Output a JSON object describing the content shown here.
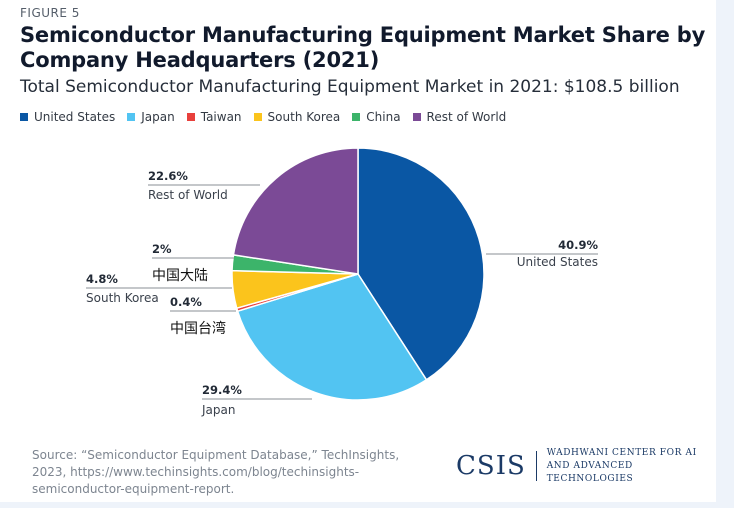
{
  "figure_label": "FIGURE 5",
  "title": "Semiconductor Manufacturing Equipment Market Share by Company Headquarters (2021)",
  "subtitle": "Total Semiconductor Manufacturing Equipment Market in 2021: $108.5 billion",
  "chart_data": {
    "type": "pie",
    "categories": [
      "United States",
      "Japan",
      "Taiwan",
      "South Korea",
      "China",
      "Rest of World"
    ],
    "values": [
      40.9,
      29.4,
      0.4,
      4.8,
      2.0,
      22.6
    ],
    "value_labels": [
      "40.9%",
      "29.4%",
      "0.4%",
      "4.8%",
      "2%",
      "22.6%"
    ],
    "slice_labels": [
      "United States",
      "Japan",
      "中国台湾",
      "South Korea",
      "中国大陆",
      "Rest of World"
    ],
    "colors": [
      "#0a57a4",
      "#52c4f2",
      "#e8403c",
      "#fbc41c",
      "#3cb46a",
      "#7b4a96"
    ],
    "legend_position": "top-left"
  },
  "source_text": "Source: “Semiconductor Equipment Database,” TechInsights, 2023, https://www.techinsights.com/blog/techinsights-semiconductor-equipment-report.",
  "logo": {
    "wordmark": "CSIS",
    "center_line1": "WADHWANI CENTER FOR AI",
    "center_line2": "AND ADVANCED TECHNOLOGIES"
  }
}
